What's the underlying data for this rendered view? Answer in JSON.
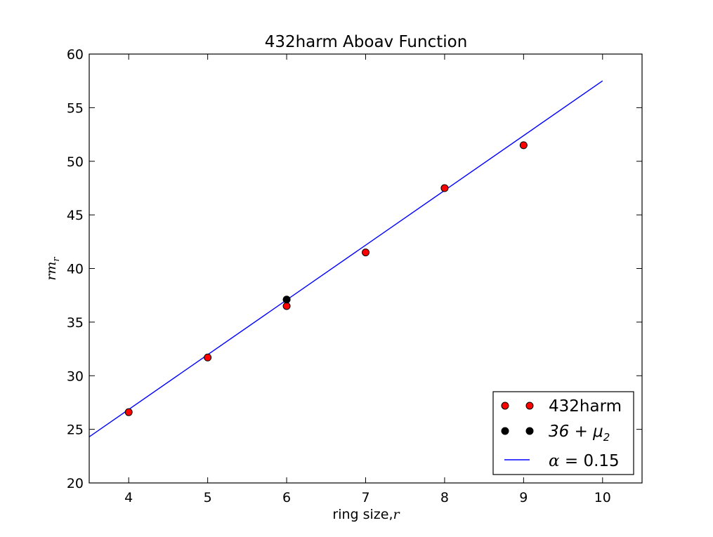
{
  "chart_data": {
    "type": "scatter",
    "title": "432harm Aboav Function",
    "xlabel_text": "ring size,",
    "xlabel_math": "r",
    "ylabel_base": "rm",
    "ylabel_sub": "r",
    "xlim": [
      3.5,
      10.5
    ],
    "ylim": [
      20,
      60
    ],
    "xticks": [
      4,
      5,
      6,
      7,
      8,
      9,
      10
    ],
    "yticks": [
      20,
      25,
      30,
      35,
      40,
      45,
      50,
      55,
      60
    ],
    "grid": false,
    "legend_position": "lower-right",
    "series": [
      {
        "name": "432harm",
        "kind": "points",
        "color": "#ff0000",
        "x": [
          4,
          5,
          6,
          7,
          8,
          9
        ],
        "y": [
          26.6,
          31.7,
          36.5,
          41.5,
          47.5,
          51.5
        ]
      },
      {
        "name_math": "36 + μ",
        "name_sub": "2",
        "kind": "points",
        "color": "#000000",
        "x": [
          6
        ],
        "y": [
          37.1
        ]
      },
      {
        "name_math": "α",
        "name_text": " = 0.15",
        "kind": "line",
        "color": "#0000ff",
        "x": [
          3.5,
          10
        ],
        "y": [
          24.3,
          57.5
        ]
      }
    ]
  }
}
